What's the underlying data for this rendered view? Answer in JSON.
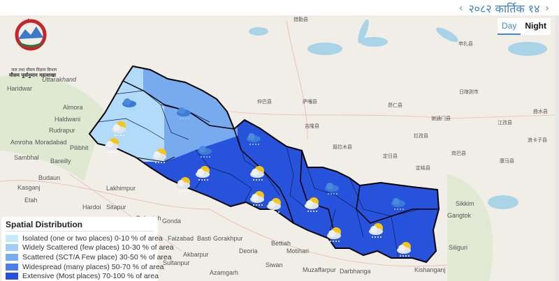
{
  "header": {
    "date_label": "२०८२ कार्तिक १४",
    "prev_icon": "chevron-left-icon",
    "next_icon": "chevron-right-icon",
    "prev": "‹",
    "next": "›"
  },
  "toggle": {
    "day": "Day",
    "night": "Night",
    "selected": "Day"
  },
  "logo": {
    "line1": "जल तथा मौसम विज्ञान विभाग",
    "line2": "मौसम पूर्वानुमान महाशाखा"
  },
  "legend": {
    "title": "Spatial Distribution",
    "items": [
      {
        "label": "Isolated (one or two places) 0-10 % of area",
        "color": "#c4eafb"
      },
      {
        "label": "Widely Scattered (few places) 10-30 % of area",
        "color": "#a3cdf7"
      },
      {
        "label": "Scattered (SCT/A Few place) 30-50 % of area",
        "color": "#7bacf0"
      },
      {
        "label": "Widespread (many places) 50-70 % of area",
        "color": "#4c7fe8"
      },
      {
        "label": "Extensive (Most places) 70-100 % of area",
        "color": "#2650dc"
      }
    ]
  },
  "map_labels": [
    "Uttarakhand",
    "Haridwar",
    "Almora",
    "Haldwani",
    "Rudrapur",
    "Moradabad",
    "Amroha",
    "Pilibhit",
    "Bareilly",
    "Sambhal",
    "Budaun",
    "Kasganj",
    "Etah",
    "Lakhimpur",
    "Hardoi",
    "Sitapur",
    "Bahraich",
    "Gonda",
    "Faizabad",
    "Basti",
    "Gorakhpur",
    "Deoria",
    "Akbarpur",
    "Sultanpur",
    "Azamgarh",
    "Siwan",
    "Bettiah",
    "Motihari",
    "Muzaffarpur",
    "Darbhanga",
    "Kishanganj",
    "Siliguri",
    "Gangtok",
    "Sikkim",
    "仲巴县",
    "萨嘎县",
    "吉隆县",
    "昂仁县",
    "聂拉木县",
    "定日县",
    "拉孜县",
    "谢通门县",
    "日喀则市",
    "江孜县",
    "曲水县",
    "申扎县",
    "措勤县",
    "康马县",
    "岗巴县",
    "浪卡子县",
    "定结县"
  ],
  "weather_icons": [
    "rain-cloud-icon",
    "sun-cloud-icon",
    "sun-rain-cloud-icon"
  ]
}
